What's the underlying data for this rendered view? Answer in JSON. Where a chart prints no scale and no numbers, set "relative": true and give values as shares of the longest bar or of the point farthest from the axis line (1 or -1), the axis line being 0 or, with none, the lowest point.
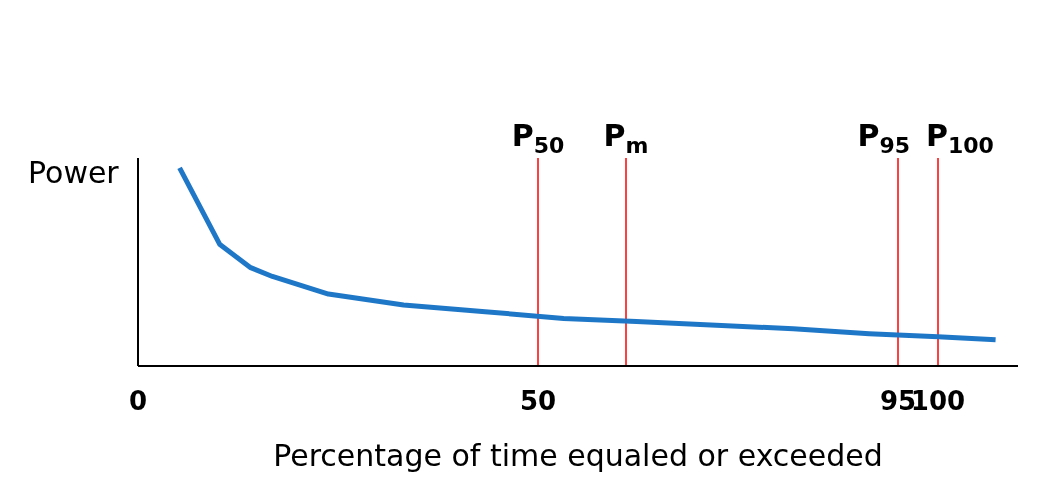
{
  "chart_data": {
    "type": "line",
    "xlabel": "Percentage of time equaled or exceeded",
    "ylabel": "Power",
    "relative": true,
    "x": [
      5.2,
      10.2,
      14.0,
      16.8,
      23.8,
      33.2,
      43.4,
      53.2,
      62.3,
      81.9,
      91.4,
      100,
      107.2
    ],
    "series": [
      {
        "color": "#1f77c8",
        "values": [
          1,
          0.615,
          0.498,
          0.452,
          0.363,
          0.308,
          0.274,
          0.24,
          0.225,
          0.188,
          0.163,
          0.148,
          0.132
        ]
      }
    ],
    "xlim": [
      0,
      110
    ],
    "xticks": [
      0,
      50,
      95,
      100
    ],
    "marker": "none",
    "line_style": "solid",
    "grid": false,
    "legend": false,
    "ref_lines": [
      {
        "axis": "x",
        "value": 50,
        "label": "P$_{50}$",
        "color": "#ff0000"
      },
      {
        "axis": "x",
        "value": 61,
        "label": "P$_{m}$",
        "color": "#ff0000"
      },
      {
        "axis": "x",
        "value": 95,
        "label": "P$_{95}$",
        "color": "#ff0000"
      },
      {
        "axis": "x",
        "value": 100,
        "label": "P$_{100}$",
        "color": "#ff0000"
      }
    ]
  }
}
